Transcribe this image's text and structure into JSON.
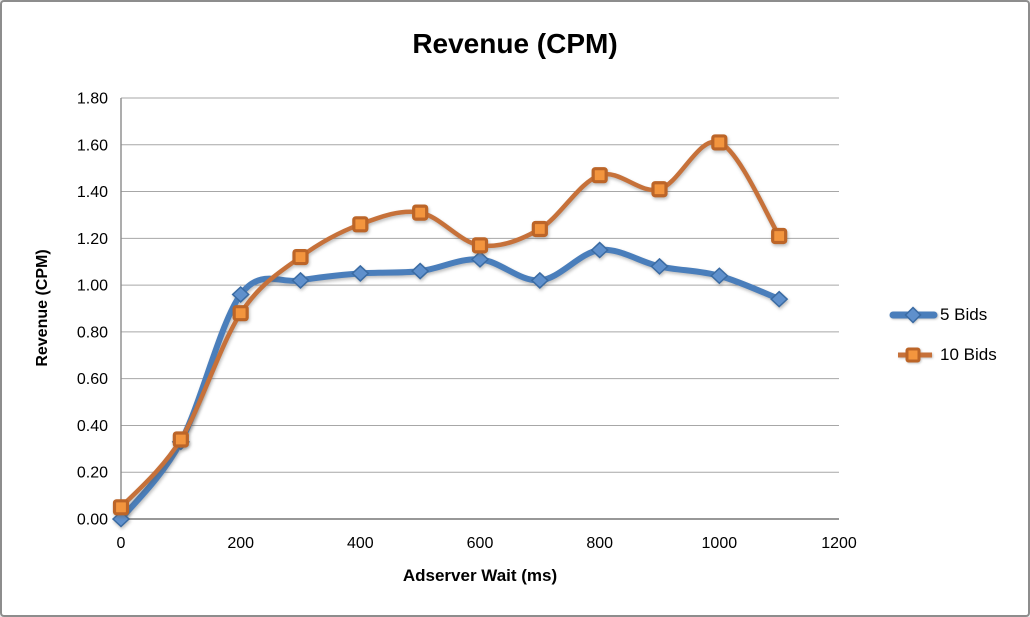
{
  "window": {
    "background": "#FFFFFF",
    "border_color": "#8D8D8D"
  },
  "chart_data": {
    "type": "line",
    "title": "Revenue (CPM)",
    "xlabel": "Adserver Wait (ms)",
    "ylabel": "Revenue (CPM)",
    "x": [
      0,
      100,
      200,
      300,
      400,
      500,
      600,
      700,
      800,
      900,
      1000,
      1100
    ],
    "series": [
      {
        "name": "5 Bids",
        "marker": "diamond",
        "values": [
          0.0,
          0.33,
          0.96,
          1.02,
          1.05,
          1.06,
          1.11,
          1.02,
          1.15,
          1.08,
          1.04,
          0.94
        ],
        "line_color": "#4A7EBB",
        "marker_fill": "#5F90CC",
        "marker_stroke": "#3A6BA3"
      },
      {
        "name": "10 Bids",
        "marker": "square",
        "values": [
          0.05,
          0.34,
          0.88,
          1.12,
          1.26,
          1.31,
          1.17,
          1.24,
          1.47,
          1.41,
          1.61,
          1.21
        ],
        "line_color": "#C6713A",
        "marker_fill": "#F3953E",
        "marker_stroke": "#BC6528"
      }
    ],
    "xlim": [
      0,
      1200
    ],
    "ylim": [
      0,
      1.8
    ],
    "xticks": {
      "values": [
        0,
        200,
        400,
        600,
        800,
        1000,
        1200
      ],
      "labels": [
        "0",
        "200",
        "400",
        "600",
        "800",
        "1000",
        "1200"
      ]
    },
    "yticks": {
      "values": [
        0.0,
        0.2,
        0.4,
        0.6,
        0.8,
        1.0,
        1.2,
        1.4,
        1.6,
        1.8
      ],
      "labels": [
        "0.00",
        "0.20",
        "0.40",
        "0.60",
        "0.80",
        "1.00",
        "1.20",
        "1.40",
        "1.60",
        "1.80"
      ]
    },
    "grid": "horizontal",
    "smooth_lines": true,
    "legend_position": "right",
    "colors": {
      "gridline": "#A7A7A7",
      "axis": "#8A8A8A",
      "text": "#000000"
    }
  }
}
